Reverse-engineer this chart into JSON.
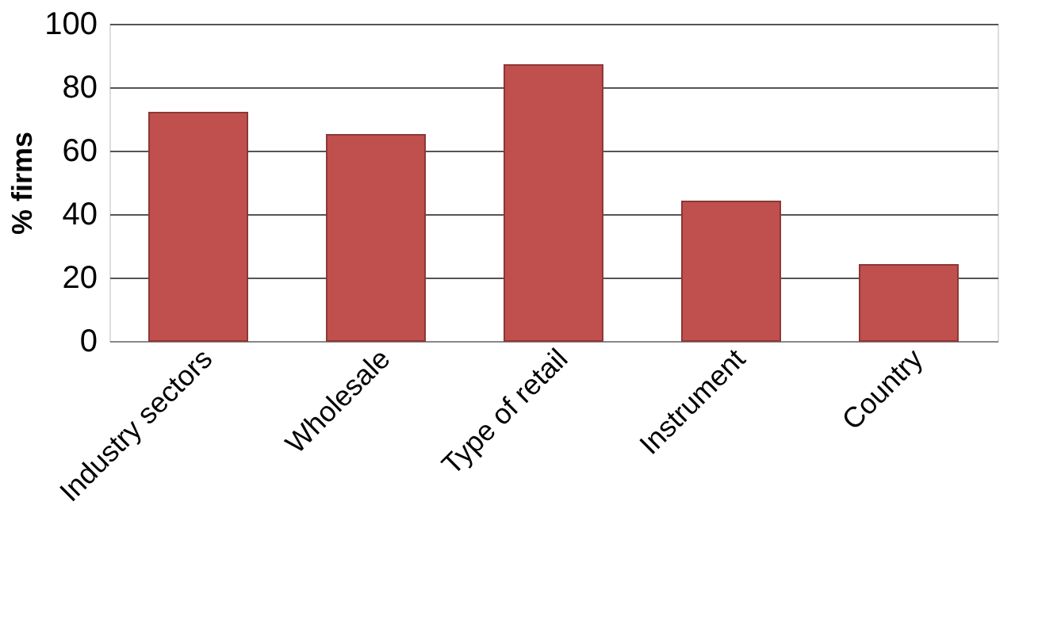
{
  "chart_data": {
    "type": "bar",
    "ylabel": "% firms",
    "categories": [
      "Industry sectors",
      "Wholesale",
      "Type of retail",
      "Instrument",
      "Country"
    ],
    "values": [
      72,
      65,
      87,
      44,
      24
    ],
    "color": "#c0504d",
    "ylim": [
      0,
      100
    ],
    "yticks": [
      0,
      20,
      40,
      60,
      80,
      100
    ],
    "grid": "y"
  }
}
